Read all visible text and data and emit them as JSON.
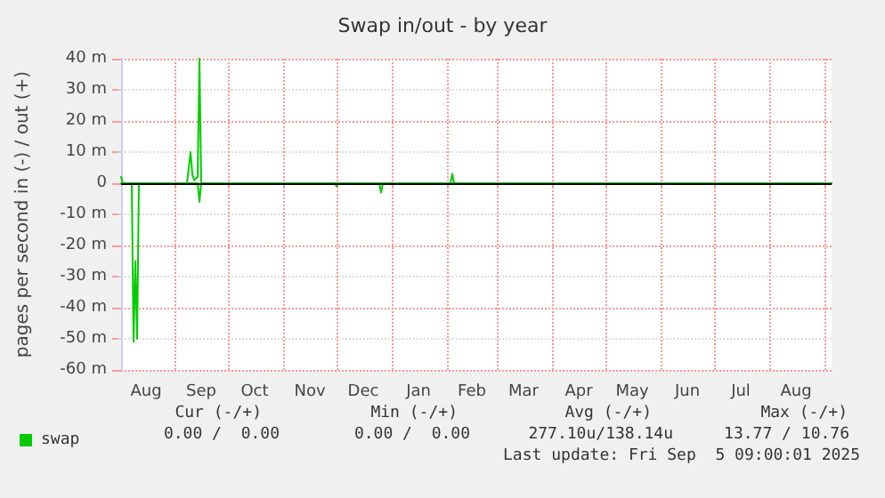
{
  "chart_data": {
    "type": "line",
    "title": "Swap in/out - by year",
    "ylabel": "pages per second in (-) / out (+)",
    "xlim": [
      "2024-08-02",
      "2025-09-05"
    ],
    "xticks": [
      {
        "value": "2024-08-16",
        "label": "Aug"
      },
      {
        "value": "2024-09-01",
        "label": null
      },
      {
        "value": "2024-09-16",
        "label": "Sep"
      },
      {
        "value": "2024-10-01",
        "label": null
      },
      {
        "value": "2024-10-16",
        "label": "Oct"
      },
      {
        "value": "2024-11-01",
        "label": null
      },
      {
        "value": "2024-11-16",
        "label": "Nov"
      },
      {
        "value": "2024-12-01",
        "label": null
      },
      {
        "value": "2024-12-16",
        "label": "Dec"
      },
      {
        "value": "2025-01-01",
        "label": null
      },
      {
        "value": "2025-01-16",
        "label": "Jan"
      },
      {
        "value": "2025-02-01",
        "label": null
      },
      {
        "value": "2025-02-15",
        "label": "Feb"
      },
      {
        "value": "2025-03-01",
        "label": null
      },
      {
        "value": "2025-03-16",
        "label": "Mar"
      },
      {
        "value": "2025-04-01",
        "label": null
      },
      {
        "value": "2025-04-16",
        "label": "Apr"
      },
      {
        "value": "2025-05-01",
        "label": null
      },
      {
        "value": "2025-05-16",
        "label": "May"
      },
      {
        "value": "2025-06-01",
        "label": null
      },
      {
        "value": "2025-06-16",
        "label": "Jun"
      },
      {
        "value": "2025-07-01",
        "label": null
      },
      {
        "value": "2025-07-16",
        "label": "Jul"
      },
      {
        "value": "2025-08-01",
        "label": null
      },
      {
        "value": "2025-08-16",
        "label": "Aug"
      },
      {
        "value": "2025-09-01",
        "label": null
      }
    ],
    "ylim": [
      -60,
      40
    ],
    "yticks": [
      {
        "value": -60,
        "label": "-60 m"
      },
      {
        "value": -50,
        "label": "-50 m"
      },
      {
        "value": -40,
        "label": "-40 m"
      },
      {
        "value": -30,
        "label": "-30 m"
      },
      {
        "value": -20,
        "label": "-20 m"
      },
      {
        "value": -10,
        "label": "-10 m"
      },
      0,
      {
        "value": 10,
        "label": "10 m"
      },
      {
        "value": 20,
        "label": "20 m"
      },
      {
        "value": 30,
        "label": "30 m"
      },
      {
        "value": 40,
        "label": "40 m"
      }
    ],
    "grid": true,
    "legend": "bottom left",
    "marker": "none",
    "line_style": "solid",
    "ref_lines": [
      {
        "axis": "y",
        "value": 0,
        "label": null,
        "color": "#000000"
      }
    ],
    "series": [
      {
        "name": "swap",
        "color": "#00cc00",
        "x": [
          "2024-08-02",
          "2024-08-03",
          "2024-09-08",
          "2024-09-10",
          "2024-09-11",
          "2024-09-12",
          "2024-09-14",
          "2024-09-15",
          "2024-09-16",
          "2025-02-03",
          "2025-02-04",
          "2025-02-05",
          "2025-09-05"
        ],
        "values": [
          2,
          0,
          0,
          10,
          3,
          1,
          2,
          40,
          0,
          0,
          3,
          0,
          0
        ]
      },
      {
        "color": "#00cc00",
        "x": [
          "2024-08-02",
          "2024-08-08",
          "2024-08-09",
          "2024-08-10",
          "2024-08-11",
          "2024-08-12",
          "2024-09-14",
          "2024-09-15",
          "2024-09-16",
          "2024-11-30",
          "2024-12-01",
          "2024-12-02",
          "2024-12-25",
          "2024-12-26",
          "2024-12-27",
          "2025-09-05"
        ],
        "values": [
          0,
          0,
          -51,
          -25,
          -50,
          0,
          0,
          -6,
          0,
          0,
          -1,
          0,
          0,
          -3,
          0,
          0
        ]
      }
    ],
    "annotations": [
      "Cur (-/+)",
      "Min (-/+)",
      "Avg (-/+)",
      "Max (-/+)",
      "0.00 /  0.00",
      "0.00 /  0.00",
      "277.10u/138.14u",
      "13.77 / 10.76",
      "Last update: Fri Sep  5 09:00:01 2025"
    ]
  }
}
